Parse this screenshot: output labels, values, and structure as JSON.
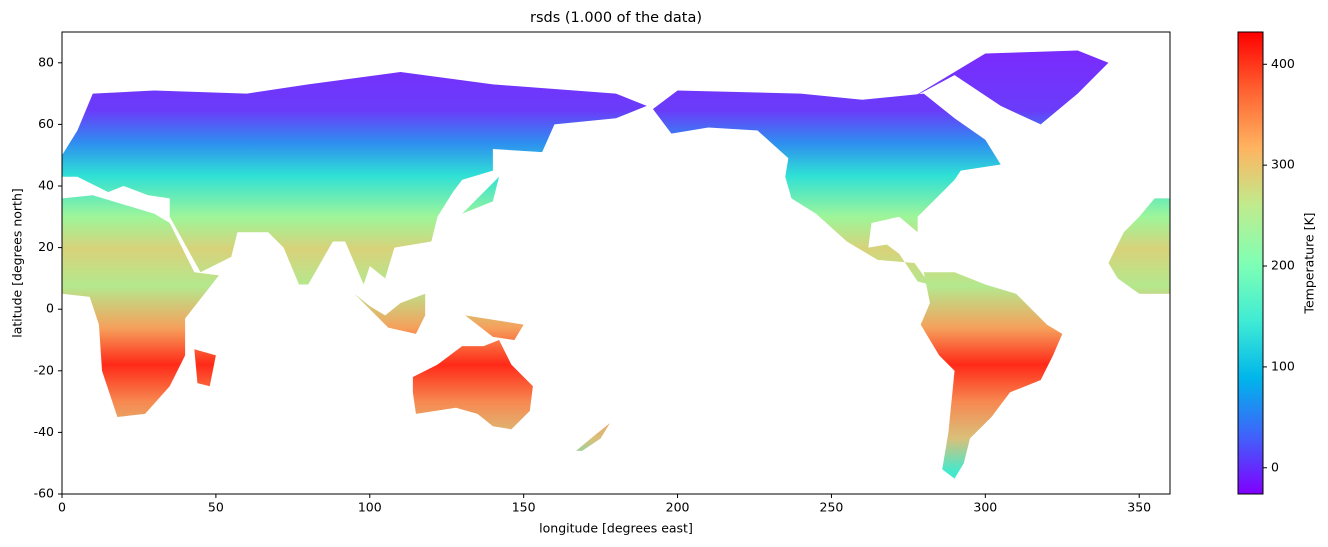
{
  "chart_data": {
    "type": "heatmap",
    "title": "rsds (1.000 of the data)",
    "x_label": "longitude [degrees east]",
    "y_label": "latitude [degrees north]",
    "xlim": [
      0,
      360
    ],
    "xticks": [
      0,
      50,
      100,
      150,
      200,
      250,
      300,
      350
    ],
    "ylim": [
      -60,
      90
    ],
    "yticks": [
      -60,
      -40,
      -20,
      0,
      20,
      40,
      60,
      80
    ],
    "colormap": "rainbow",
    "colorbar": {
      "label": "Temperature [K]",
      "lim": [
        -26,
        432
      ],
      "ticks": [
        0,
        100,
        200,
        300,
        400
      ]
    }
  }
}
